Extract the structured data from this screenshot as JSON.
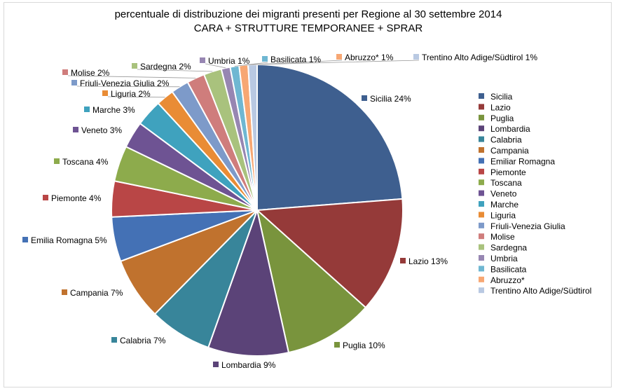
{
  "chart_data": {
    "type": "pie",
    "title": "percentuale di distribuzione dei migranti presenti per Regione al 30 settembre 2014",
    "subtitle": "CARA + STRUTTURE TEMPORANEE + SPRAR",
    "categories": [
      "Sicilia",
      "Lazio",
      "Puglia",
      "Lombardia",
      "Calabria",
      "Campania",
      "Emiliar Romagna",
      "Piemonte",
      "Toscana",
      "Veneto",
      "Marche",
      "Liguria",
      "Friuli-Venezia Giulia",
      "Molise",
      "Sardegna",
      "Umbria",
      "Basilicata",
      "Abruzzo*",
      "Trentino Alto Adige/Südtirol"
    ],
    "values": [
      24,
      13,
      10,
      9,
      7,
      7,
      5,
      4,
      4,
      3,
      3,
      2,
      2,
      2,
      2,
      1,
      1,
      1,
      1
    ],
    "data_labels": [
      "Sicilia 24%",
      "Lazio 13%",
      "Puglia 10%",
      "Lombardia 9%",
      "Calabria 7%",
      "Campania 7%",
      "Emilia Romagna 5%",
      "Piemonte 4%",
      "Toscana 4%",
      "Veneto 3%",
      "Marche 3%",
      "Liguria 2%",
      "Friuli-Venezia Giulia 2%",
      "Molise 2%",
      "Sardegna 2%",
      "Umbria 1%",
      "Basilicata 1%",
      "Abruzzo* 1%",
      "Trentino Alto Adige/Südtirol 1%"
    ],
    "colors": [
      "#3e5f8f",
      "#953a39",
      "#79943d",
      "#5b4378",
      "#38859a",
      "#c0722e",
      "#4471b5",
      "#b94646",
      "#8dab4c",
      "#6e5393",
      "#3fa2be",
      "#e98c35",
      "#7d9ac9",
      "#cf7d7c",
      "#a9c27d",
      "#9786b2",
      "#6fb7d2",
      "#f7a773",
      "#b9c9e2"
    ],
    "legend_position": "right"
  }
}
